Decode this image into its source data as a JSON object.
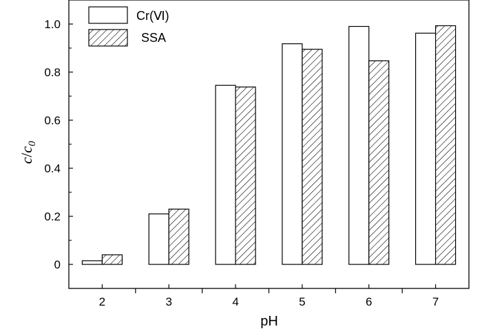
{
  "chart_data": {
    "type": "bar",
    "categories": [
      "2",
      "3",
      "4",
      "5",
      "6",
      "7"
    ],
    "series": [
      {
        "name": "Cr(Ⅵ)",
        "values": [
          0.015,
          0.21,
          0.745,
          0.918,
          0.99,
          0.962
        ],
        "pattern": "hollow"
      },
      {
        "name": "SSA",
        "values": [
          0.04,
          0.23,
          0.738,
          0.895,
          0.847,
          0.993
        ],
        "pattern": "hatched"
      }
    ],
    "title": "",
    "xlabel": "pH",
    "ylabel": {
      "main": "c",
      "separator": "/",
      "sub_base": "c",
      "subscript": "0"
    },
    "ylim": [
      -0.1,
      1.1
    ],
    "yticks": [
      "0",
      "0.2",
      "0.4",
      "0.6",
      "0.8",
      "1.0"
    ],
    "ytick_values": [
      0,
      0.2,
      0.4,
      0.6,
      0.8,
      1.0
    ],
    "legend_position": "top-left",
    "grid": false,
    "colors": {
      "bar_stroke": "#000000",
      "bar_fill": "#ffffff",
      "hatch": "#000000"
    }
  }
}
